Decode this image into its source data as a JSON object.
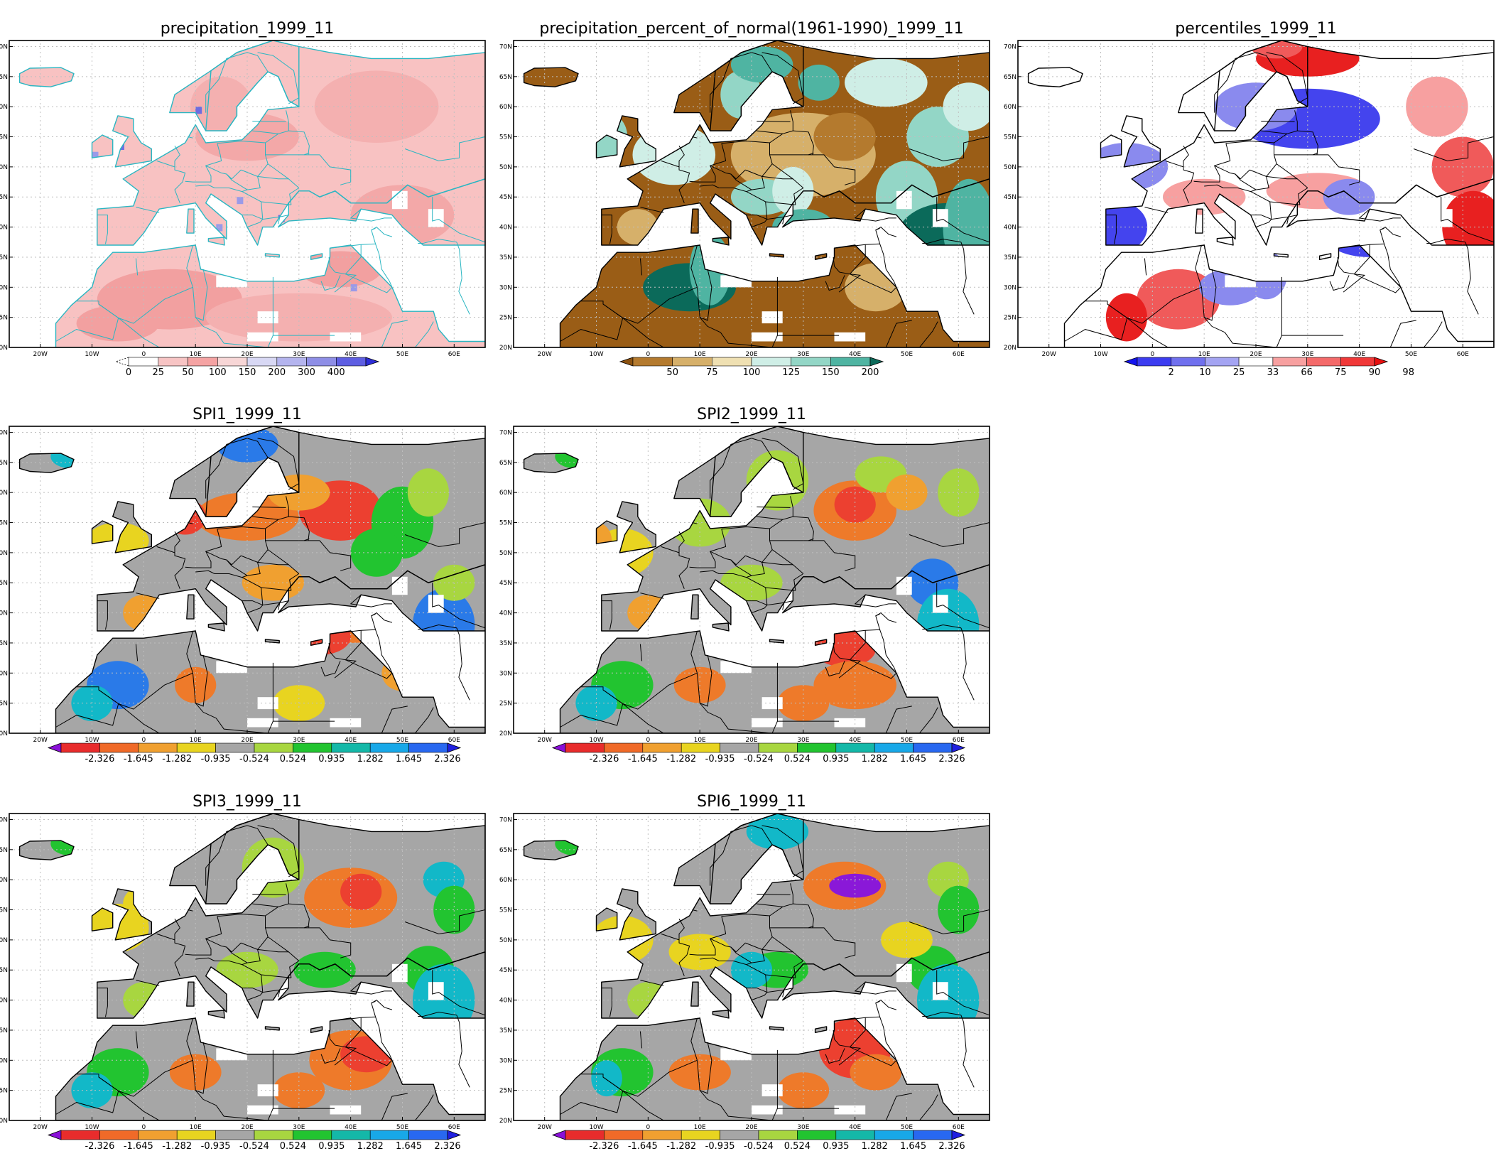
{
  "maps": [
    {
      "id": "precipitation",
      "title": "precipitation_1999_11",
      "colorbar": {
        "labels": [
          "0",
          "25",
          "50",
          "100",
          "150",
          "200",
          "300",
          "400"
        ],
        "colors": [
          "#ffffff",
          "#f7c4c4",
          "#f5a3a3",
          "#f7d6d6",
          "#d8d8f4",
          "#b4b4ee",
          "#8e8ee6",
          "#5e5ee2",
          "#2e2ed8"
        ],
        "low_dashed": true,
        "high_arrow": true
      },
      "field": {
        "base": "#f8c2c2",
        "blobs": [
          "#f2a0a0",
          "#f4b0b0",
          "#f3a8a8"
        ],
        "spots": [
          "#6d6de0",
          "#9a9ae8"
        ]
      }
    },
    {
      "id": "percent_normal",
      "title": "precipitation_percent_of_normal(1961-1990)_1999_11",
      "colorbar": {
        "labels": [
          "50",
          "75",
          "100",
          "125",
          "150",
          "200"
        ],
        "colors": [
          "#8c5210",
          "#b47a2e",
          "#d6b06a",
          "#efe0b2",
          "#cfeee6",
          "#93d6c6",
          "#4fb4a2",
          "#0b6a5a"
        ],
        "low_arrow": true,
        "high_arrow": true
      },
      "field": {
        "base": "#9a5d16",
        "blobs": [
          "#b47a2e",
          "#d6b06a",
          "#cfeee6",
          "#93d6c6",
          "#4fb4a2",
          "#0b6a5a"
        ]
      }
    },
    {
      "id": "percentiles",
      "title": "percentiles_1999_11",
      "colorbar": {
        "labels": [
          "2",
          "10",
          "25",
          "33",
          "66",
          "75",
          "90",
          "98"
        ],
        "colors": [
          "#1414f0",
          "#3c3cf0",
          "#7070ee",
          "#a4a4f2",
          "#ffffff",
          "#f7a0a0",
          "#f46a6a",
          "#f03838",
          "#e80f0f"
        ],
        "low_arrow": true,
        "high_arrow": true
      },
      "field": {
        "base": "#ffffff",
        "blobs": [
          "#4444ee",
          "#8a8aee",
          "#f05a5a",
          "#f7a0a0",
          "#e82020"
        ]
      }
    },
    {
      "id": "spi1",
      "title": "SPI1_1999_11",
      "colorbar": {
        "ref": "spi"
      },
      "field": {
        "base": "#a6a6a6",
        "blobs": [
          "#e8d420",
          "#f0a030",
          "#ee7a2a",
          "#ec4030",
          "#a8d640",
          "#22c430",
          "#12b8c8",
          "#2a7ae8",
          "#1a2ae0"
        ]
      }
    },
    {
      "id": "spi2",
      "title": "SPI2_1999_11",
      "colorbar": {
        "ref": "spi"
      },
      "field": {
        "base": "#a6a6a6",
        "blobs": [
          "#e8d420",
          "#f0a030",
          "#ee7a2a",
          "#ec4030",
          "#a8d640",
          "#22c430",
          "#12b8c8",
          "#2a7ae8"
        ]
      }
    },
    {
      "id": "spi3",
      "title": "SPI3_1999_11",
      "colorbar": {
        "ref": "spi"
      },
      "field": {
        "base": "#a6a6a6",
        "blobs": [
          "#e8d420",
          "#f0a030",
          "#ee7a2a",
          "#ec4030",
          "#a8d640",
          "#22c430",
          "#12b8c8",
          "#2a7ae8"
        ]
      }
    },
    {
      "id": "spi6",
      "title": "SPI6_1999_11",
      "colorbar": {
        "ref": "spi"
      },
      "field": {
        "base": "#a6a6a6",
        "blobs": [
          "#e8d420",
          "#f0a030",
          "#ee7a2a",
          "#ec4030",
          "#a8d640",
          "#22c430",
          "#12b8c8",
          "#2a7ae8",
          "#8a18d8"
        ]
      }
    }
  ],
  "spi_colorbar": {
    "labels": [
      "-2.326",
      "-1.645",
      "-1.282",
      "-0.935",
      "-0.524",
      "0.524",
      "0.935",
      "1.282",
      "1.645",
      "2.326"
    ],
    "colors": [
      "#8a10d8",
      "#e82c2c",
      "#f06a28",
      "#f0a030",
      "#e8d420",
      "#a6a6a6",
      "#a8d640",
      "#22c430",
      "#14b8a8",
      "#18a8e8",
      "#2868f0",
      "#2020e0"
    ],
    "low_arrow": true,
    "high_arrow": true
  },
  "lon_labels": [
    "20W",
    "10W",
    "0",
    "10E",
    "20E",
    "30E",
    "40E",
    "50E",
    "60E"
  ],
  "lat_labels": [
    "70N",
    "65N",
    "60N",
    "55N",
    "50N",
    "45N",
    "40N",
    "35N",
    "30N",
    "25N",
    "20N"
  ],
  "colors": {
    "land_outline": "#000000",
    "coast_cyan": "#2ab6c2",
    "sea": "#ffffff",
    "grid": "#bfbfbf"
  }
}
